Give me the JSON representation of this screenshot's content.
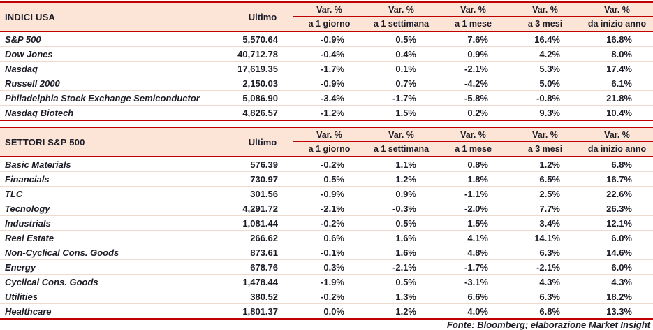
{
  "chart_data": [
    {
      "type": "table",
      "title": "INDICI USA",
      "ultimo_label": "Ultimo",
      "var_headers": [
        {
          "top": "Var. %",
          "bottom": "a 1 giorno"
        },
        {
          "top": "Var. %",
          "bottom": "a 1 settimana"
        },
        {
          "top": "Var. %",
          "bottom": "a 1 mese"
        },
        {
          "top": "Var. %",
          "bottom": "a 3 mesi"
        },
        {
          "top": "Var. %",
          "bottom": "da inizio anno"
        }
      ],
      "rows": [
        {
          "name": "S&P 500",
          "ultimo": "5,570.64",
          "vals": [
            "-0.9%",
            "0.5%",
            "7.6%",
            "16.4%",
            "16.8%"
          ]
        },
        {
          "name": "Dow Jones",
          "ultimo": "40,712.78",
          "vals": [
            "-0.4%",
            "0.4%",
            "0.9%",
            "4.2%",
            "8.0%"
          ]
        },
        {
          "name": "Nasdaq",
          "ultimo": "17,619.35",
          "vals": [
            "-1.7%",
            "0.1%",
            "-2.1%",
            "5.3%",
            "17.4%"
          ]
        },
        {
          "name": "Russell 2000",
          "ultimo": "2,150.03",
          "vals": [
            "-0.9%",
            "0.7%",
            "-4.2%",
            "5.0%",
            "6.1%"
          ]
        },
        {
          "name": "Philadelphia Stock Exchange Semiconductor",
          "ultimo": "5,086.90",
          "vals": [
            "-3.4%",
            "-1.7%",
            "-5.8%",
            "-0.8%",
            "21.8%"
          ]
        },
        {
          "name": "Nasdaq Biotech",
          "ultimo": "4,826.57",
          "vals": [
            "-1.2%",
            "1.5%",
            "0.2%",
            "9.3%",
            "10.4%"
          ]
        }
      ]
    },
    {
      "type": "table",
      "title": "SETTORI S&P 500",
      "ultimo_label": "Ultimo",
      "var_headers": [
        {
          "top": "Var. %",
          "bottom": "a 1 giorno"
        },
        {
          "top": "Var. %",
          "bottom": "a 1 settimana"
        },
        {
          "top": "Var. %",
          "bottom": "a 1 mese"
        },
        {
          "top": "Var. %",
          "bottom": "a 3 mesi"
        },
        {
          "top": "Var. %",
          "bottom": "da inizio anno"
        }
      ],
      "rows": [
        {
          "name": "Basic Materials",
          "ultimo": "576.39",
          "vals": [
            "-0.2%",
            "1.1%",
            "0.8%",
            "1.2%",
            "6.8%"
          ]
        },
        {
          "name": "Financials",
          "ultimo": "730.97",
          "vals": [
            "0.5%",
            "1.2%",
            "1.8%",
            "6.5%",
            "16.7%"
          ]
        },
        {
          "name": "TLC",
          "ultimo": "301.56",
          "vals": [
            "-0.9%",
            "0.9%",
            "-1.1%",
            "2.5%",
            "22.6%"
          ]
        },
        {
          "name": "Tecnology",
          "ultimo": "4,291.72",
          "vals": [
            "-2.1%",
            "-0.3%",
            "-2.0%",
            "7.7%",
            "26.3%"
          ]
        },
        {
          "name": "Industrials",
          "ultimo": "1,081.44",
          "vals": [
            "-0.2%",
            "0.5%",
            "1.5%",
            "3.4%",
            "12.1%"
          ]
        },
        {
          "name": "Real Estate",
          "ultimo": "266.62",
          "vals": [
            "0.6%",
            "1.6%",
            "4.1%",
            "14.1%",
            "6.0%"
          ]
        },
        {
          "name": "Non-Cyclical Cons. Goods",
          "ultimo": "873.61",
          "vals": [
            "-0.1%",
            "1.6%",
            "4.8%",
            "6.3%",
            "14.6%"
          ]
        },
        {
          "name": "Energy",
          "ultimo": "678.76",
          "vals": [
            "0.3%",
            "-2.1%",
            "-1.7%",
            "-2.1%",
            "6.0%"
          ]
        },
        {
          "name": "Cyclical Cons. Goods",
          "ultimo": "1,478.44",
          "vals": [
            "-1.9%",
            "0.5%",
            "-3.1%",
            "4.3%",
            "4.3%"
          ]
        },
        {
          "name": "Utilities",
          "ultimo": "380.52",
          "vals": [
            "-0.2%",
            "1.3%",
            "6.6%",
            "6.3%",
            "18.2%"
          ]
        },
        {
          "name": "Healthcare",
          "ultimo": "1,801.37",
          "vals": [
            "0.0%",
            "1.2%",
            "4.0%",
            "6.8%",
            "13.3%"
          ]
        }
      ]
    }
  ],
  "footer": "Fonte: Bloomberg; elaborazione Market Insight",
  "colors": {
    "accent_line": "#c00000",
    "header_bg": "#fce4d6",
    "row_separator": "#eedbce",
    "text": "#1c1c26"
  }
}
